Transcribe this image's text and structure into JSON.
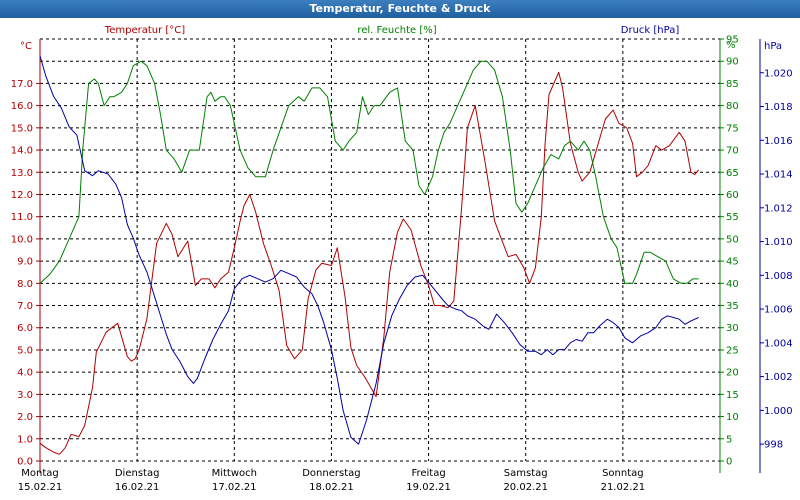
{
  "window": {
    "title": "Temperatur, Feuchte & Druck"
  },
  "chart_data": {
    "type": "line",
    "title": "Temperatur, Feuchte & Druck",
    "legend": [
      "Temperatur [°C]",
      "rel. Feuchte [%]",
      "Druck [hPa]"
    ],
    "days": [
      {
        "name": "Montag",
        "date": "15.02.21"
      },
      {
        "name": "Dienstag",
        "date": "16.02.21"
      },
      {
        "name": "Mittwoch",
        "date": "17.02.21"
      },
      {
        "name": "Donnerstag",
        "date": "18.02.21"
      },
      {
        "name": "Freitag",
        "date": "19.02.21"
      },
      {
        "name": "Samstag",
        "date": "20.02.21"
      },
      {
        "name": "Sonntag",
        "date": "21.02.21"
      }
    ],
    "x_range_days": [
      0,
      7
    ],
    "grid": true,
    "axes": {
      "temp": {
        "label": "°C",
        "color": "#b00000",
        "min": 0,
        "max": 19,
        "ticks": [
          "0.0",
          "1.0",
          "2.0",
          "3.0",
          "4.0",
          "5.0",
          "6.0",
          "7.0",
          "8.0",
          "9.0",
          "10.0",
          "11.0",
          "12.0",
          "13.0",
          "14.0",
          "15.0",
          "16.0",
          "17.0"
        ]
      },
      "hum": {
        "label": "%",
        "color": "#008000",
        "min": 0,
        "max": 95,
        "ticks": [
          "0",
          "5",
          "10",
          "15",
          "20",
          "25",
          "30",
          "35",
          "40",
          "45",
          "50",
          "55",
          "60",
          "65",
          "70",
          "75",
          "80",
          "85",
          "90",
          "95"
        ]
      },
      "press": {
        "label": "hPa",
        "color": "#0000a0",
        "min": 997,
        "max": 1022,
        "ticks": [
          "998",
          "1.000",
          "1.002",
          "1.004",
          "1.006",
          "1.008",
          "1.010",
          "1.012",
          "1.014",
          "1.016",
          "1.018",
          "1.020"
        ]
      }
    },
    "colors": {
      "temp": "#b00000",
      "hum": "#008000",
      "press": "#0000a0",
      "grid": "#000000"
    },
    "series": [
      {
        "name": "Temperatur [°C]",
        "axis": "temp",
        "x": [
          0,
          0.06,
          0.14,
          0.2,
          0.26,
          0.32,
          0.4,
          0.46,
          0.54,
          0.58,
          0.68,
          0.74,
          0.8,
          0.86,
          0.9,
          0.94,
          0.98,
          1.02,
          1.1,
          1.2,
          1.3,
          1.36,
          1.42,
          1.52,
          1.6,
          1.66,
          1.74,
          1.8,
          1.86,
          1.94,
          2.0,
          2.06,
          2.1,
          2.16,
          2.22,
          2.3,
          2.38,
          2.46,
          2.54,
          2.62,
          2.7,
          2.76,
          2.84,
          2.9,
          3.0,
          3.06,
          3.14,
          3.2,
          3.26,
          3.34,
          3.42,
          3.46,
          3.54,
          3.6,
          3.68,
          3.74,
          3.82,
          3.92,
          4.0,
          4.06,
          4.12,
          4.2,
          4.26,
          4.34,
          4.4,
          4.48,
          4.58,
          4.68,
          4.74,
          4.82,
          4.9,
          4.98,
          5.04,
          5.1,
          5.16,
          5.2,
          5.24,
          5.34,
          5.38,
          5.46,
          5.54,
          5.58,
          5.66,
          5.74,
          5.82,
          5.9,
          5.96,
          6.04,
          6.1,
          6.14,
          6.2,
          6.26,
          6.34,
          6.4,
          6.48,
          6.58,
          6.64,
          6.7,
          6.74,
          6.78
        ],
        "values": [
          0.8,
          0.6,
          0.4,
          0.3,
          0.6,
          1.2,
          1.1,
          1.6,
          3.3,
          4.9,
          5.8,
          6.0,
          6.2,
          5.3,
          4.7,
          4.5,
          4.6,
          5.0,
          6.4,
          9.8,
          10.7,
          10.2,
          9.2,
          9.9,
          7.9,
          8.2,
          8.2,
          7.8,
          8.2,
          8.5,
          9.6,
          10.8,
          11.5,
          12.0,
          11.2,
          9.8,
          8.8,
          7.7,
          5.2,
          4.6,
          5.0,
          7.3,
          8.6,
          8.9,
          8.8,
          9.6,
          7.4,
          5.1,
          4.3,
          3.8,
          3.2,
          2.9,
          5.6,
          8.5,
          10.3,
          10.9,
          10.4,
          8.8,
          7.9,
          7.0,
          7.0,
          6.9,
          7.2,
          11.4,
          15.0,
          16.0,
          13.5,
          10.8,
          10.1,
          9.2,
          9.3,
          8.7,
          8.0,
          8.7,
          11.0,
          14.3,
          16.5,
          17.5,
          16.8,
          14.3,
          13.0,
          12.6,
          13.0,
          14.2,
          15.4,
          15.8,
          15.2,
          15.0,
          14.3,
          12.8,
          13.0,
          13.3,
          14.2,
          14.0,
          14.2,
          14.8,
          14.4,
          13.0,
          12.9,
          13.1
        ]
      },
      {
        "name": "rel. Feuchte [%]",
        "axis": "hum",
        "x": [
          0,
          0.1,
          0.2,
          0.3,
          0.4,
          0.44,
          0.5,
          0.56,
          0.6,
          0.66,
          0.72,
          0.76,
          0.84,
          0.9,
          0.96,
          1.04,
          1.1,
          1.18,
          1.24,
          1.3,
          1.38,
          1.46,
          1.54,
          1.64,
          1.72,
          1.76,
          1.8,
          1.86,
          1.9,
          1.96,
          2.06,
          2.14,
          2.22,
          2.32,
          2.4,
          2.48,
          2.56,
          2.66,
          2.72,
          2.8,
          2.88,
          2.96,
          3.04,
          3.12,
          3.18,
          3.26,
          3.32,
          3.38,
          3.44,
          3.5,
          3.6,
          3.68,
          3.76,
          3.84,
          3.9,
          3.96,
          4.04,
          4.1,
          4.16,
          4.22,
          4.3,
          4.38,
          4.46,
          4.54,
          4.6,
          4.68,
          4.76,
          4.84,
          4.9,
          4.96,
          5.02,
          5.1,
          5.18,
          5.26,
          5.34,
          5.4,
          5.46,
          5.54,
          5.6,
          5.66,
          5.72,
          5.8,
          5.88,
          5.94,
          6.02,
          6.1,
          6.14,
          6.22,
          6.28,
          6.36,
          6.44,
          6.52,
          6.6,
          6.66,
          6.72,
          6.78
        ],
        "values": [
          40,
          42,
          45,
          50,
          55,
          70,
          85,
          86,
          85,
          80,
          82,
          82,
          83,
          85,
          89,
          90,
          89,
          85,
          78,
          70,
          68,
          65,
          70,
          70,
          82,
          83,
          81,
          82,
          82,
          80,
          70,
          66,
          64,
          64,
          70,
          75,
          80,
          82,
          81,
          84,
          84,
          82,
          72,
          70,
          72,
          74,
          82,
          78,
          80,
          80,
          83,
          84,
          72,
          70,
          62,
          60,
          64,
          70,
          74,
          76,
          80,
          84,
          88,
          90,
          90,
          88,
          82,
          70,
          58,
          56,
          58,
          62,
          66,
          69,
          68,
          71,
          72,
          70,
          72,
          70,
          64,
          55,
          50,
          48,
          40,
          40,
          42,
          47,
          47,
          46,
          45,
          41,
          40,
          40,
          41,
          41
        ]
      },
      {
        "name": "Druck [hPa]",
        "axis": "press",
        "x": [
          0,
          0.06,
          0.14,
          0.22,
          0.3,
          0.38,
          0.46,
          0.54,
          0.6,
          0.7,
          0.78,
          0.84,
          0.9,
          0.96,
          1.02,
          1.1,
          1.22,
          1.3,
          1.36,
          1.44,
          1.52,
          1.58,
          1.62,
          1.7,
          1.78,
          1.86,
          1.94,
          2.0,
          2.08,
          2.16,
          2.24,
          2.32,
          2.4,
          2.48,
          2.56,
          2.64,
          2.72,
          2.8,
          2.86,
          2.92,
          3.0,
          3.06,
          3.12,
          3.2,
          3.28,
          3.36,
          3.46,
          3.54,
          3.62,
          3.7,
          3.78,
          3.86,
          3.94,
          4.04,
          4.14,
          4.2,
          4.28,
          4.34,
          4.4,
          4.48,
          4.56,
          4.62,
          4.7,
          4.78,
          4.86,
          4.94,
          5.02,
          5.1,
          5.16,
          5.22,
          5.28,
          5.34,
          5.4,
          5.46,
          5.52,
          5.58,
          5.64,
          5.7,
          5.76,
          5.84,
          5.9,
          5.96,
          6.02,
          6.1,
          6.18,
          6.26,
          6.34,
          6.4,
          6.46,
          6.52,
          6.58,
          6.64,
          6.7,
          6.78
        ],
        "values": [
          1021.0,
          1019.8,
          1018.6,
          1017.9,
          1016.8,
          1016.3,
          1014.2,
          1013.9,
          1014.2,
          1014.0,
          1013.4,
          1012.6,
          1011.0,
          1010.2,
          1009.2,
          1008.2,
          1006.0,
          1004.5,
          1003.6,
          1002.9,
          1002.0,
          1001.6,
          1001.9,
          1003.1,
          1004.2,
          1005.1,
          1005.9,
          1007.2,
          1007.8,
          1008.0,
          1007.8,
          1007.6,
          1007.8,
          1008.3,
          1008.1,
          1007.9,
          1007.3,
          1006.9,
          1006.2,
          1005.2,
          1003.6,
          1001.9,
          1000.0,
          998.4,
          998.0,
          999.4,
          1001.6,
          1004.0,
          1005.6,
          1006.6,
          1007.4,
          1007.9,
          1008.0,
          1007.3,
          1006.6,
          1006.2,
          1006.0,
          1005.9,
          1005.6,
          1005.4,
          1005.0,
          1004.8,
          1005.7,
          1005.2,
          1004.6,
          1003.9,
          1003.5,
          1003.5,
          1003.3,
          1003.6,
          1003.3,
          1003.6,
          1003.6,
          1004.0,
          1004.2,
          1004.1,
          1004.6,
          1004.6,
          1005.0,
          1005.4,
          1005.2,
          1004.9,
          1004.3,
          1004.0,
          1004.4,
          1004.6,
          1004.9,
          1005.4,
          1005.6,
          1005.5,
          1005.4,
          1005.1,
          1005.3,
          1005.5
        ]
      }
    ]
  }
}
